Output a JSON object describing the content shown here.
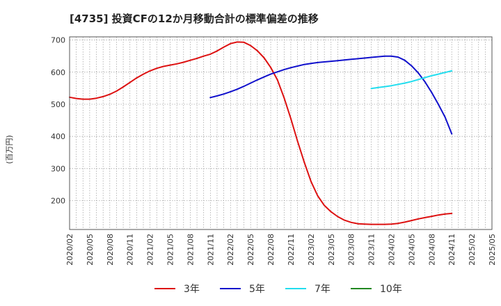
{
  "chart_data": {
    "type": "line",
    "title": "[4735]  投資CFの12か月移動合計の標準偏差の推移",
    "ylabel": "(百万円)",
    "xlabel": "",
    "ylim": [
      110,
      710
    ],
    "yticks": [
      200,
      300,
      400,
      500,
      600,
      700
    ],
    "grid": true,
    "legend_position": "bottom",
    "x_tick_labels": [
      "2020/02",
      "2020/05",
      "2020/08",
      "2020/11",
      "2021/02",
      "2021/05",
      "2021/08",
      "2021/11",
      "2022/02",
      "2022/05",
      "2022/08",
      "2022/11",
      "2023/02",
      "2023/05",
      "2023/08",
      "2023/11",
      "2024/02",
      "2024/05",
      "2024/08",
      "2024/11",
      "2025/02",
      "2025/05"
    ],
    "series": [
      {
        "name": "3年",
        "color": "#dd1111",
        "x": [
          "2020/02",
          "2020/03",
          "2020/04",
          "2020/05",
          "2020/06",
          "2020/07",
          "2020/08",
          "2020/09",
          "2020/10",
          "2020/11",
          "2020/12",
          "2021/01",
          "2021/02",
          "2021/03",
          "2021/04",
          "2021/05",
          "2021/06",
          "2021/07",
          "2021/08",
          "2021/09",
          "2021/10",
          "2021/11",
          "2021/12",
          "2022/01",
          "2022/02",
          "2022/03",
          "2022/04",
          "2022/05",
          "2022/06",
          "2022/07",
          "2022/08",
          "2022/09",
          "2022/10",
          "2022/11",
          "2022/12",
          "2023/01",
          "2023/02",
          "2023/03",
          "2023/04",
          "2023/05",
          "2023/06",
          "2023/07",
          "2023/08",
          "2023/09",
          "2023/10",
          "2023/11",
          "2023/12",
          "2024/01",
          "2024/02",
          "2024/03",
          "2024/04",
          "2024/05",
          "2024/06",
          "2024/07",
          "2024/08",
          "2024/09",
          "2024/10",
          "2024/11"
        ],
        "values": [
          522,
          518,
          516,
          516,
          519,
          524,
          531,
          541,
          554,
          568,
          582,
          594,
          604,
          612,
          618,
          622,
          626,
          631,
          637,
          643,
          650,
          656,
          666,
          678,
          689,
          694,
          693,
          683,
          667,
          645,
          615,
          576,
          520,
          455,
          385,
          320,
          260,
          215,
          185,
          165,
          150,
          139,
          132,
          128,
          127,
          126,
          126,
          126,
          127,
          129,
          133,
          138,
          143,
          147,
          151,
          155,
          158,
          160
        ]
      },
      {
        "name": "5年",
        "color": "#1111cc",
        "x": [
          "2021/11",
          "2021/12",
          "2022/01",
          "2022/02",
          "2022/03",
          "2022/04",
          "2022/05",
          "2022/06",
          "2022/07",
          "2022/08",
          "2022/09",
          "2022/10",
          "2022/11",
          "2022/12",
          "2023/01",
          "2023/02",
          "2023/03",
          "2023/04",
          "2023/05",
          "2023/06",
          "2023/07",
          "2023/08",
          "2023/09",
          "2023/10",
          "2023/11",
          "2023/12",
          "2024/01",
          "2024/02",
          "2024/03",
          "2024/04",
          "2024/05",
          "2024/06",
          "2024/07",
          "2024/08",
          "2024/09",
          "2024/10",
          "2024/11"
        ],
        "values": [
          521,
          526,
          532,
          539,
          547,
          556,
          566,
          576,
          585,
          594,
          601,
          608,
          614,
          619,
          624,
          627,
          630,
          632,
          634,
          636,
          638,
          640,
          642,
          644,
          646,
          648,
          650,
          650,
          647,
          637,
          620,
          598,
          570,
          537,
          500,
          460,
          408
        ]
      },
      {
        "name": "7年",
        "color": "#22ddee",
        "x": [
          "2023/11",
          "2023/12",
          "2024/01",
          "2024/02",
          "2024/03",
          "2024/04",
          "2024/05",
          "2024/06",
          "2024/07",
          "2024/08",
          "2024/09",
          "2024/10",
          "2024/11"
        ],
        "values": [
          549,
          552,
          555,
          558,
          562,
          566,
          571,
          577,
          583,
          589,
          594,
          599,
          604
        ]
      },
      {
        "name": "10年",
        "color": "#228822",
        "x": [],
        "values": []
      }
    ]
  }
}
